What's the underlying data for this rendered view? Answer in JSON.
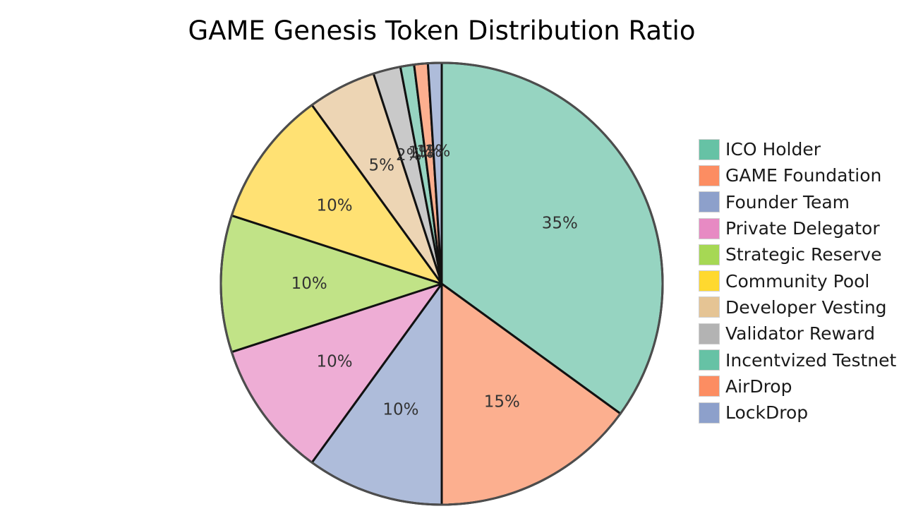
{
  "chart_data": {
    "type": "pie",
    "title": "GAME Genesis Token Distribution Ratio",
    "categories": [
      "ICO Holder",
      "GAME Foundation",
      "Founder Team",
      "Private Delegator",
      "Strategic Reserve",
      "Community Pool",
      "Developer Vesting",
      "Validator Reward",
      "Incentvized Testnet",
      "AirDrop",
      "LockDrop"
    ],
    "values": [
      35,
      15,
      10,
      10,
      10,
      10,
      5,
      2,
      1,
      1,
      1
    ],
    "value_labels": [
      "35%",
      "15%",
      "10%",
      "10%",
      "10%",
      "10%",
      "5%",
      "2%",
      "1%",
      "1%",
      "1%"
    ],
    "slice_colors": [
      "#96d4c1",
      "#fcaf8f",
      "#aebcda",
      "#eeadd5",
      "#c1e387",
      "#ffe173",
      "#edd5b4",
      "#c9c9c9",
      "#96d4c1",
      "#fcaf8f",
      "#aebcda"
    ],
    "legend_colors": [
      "#66c2a5",
      "#fc8d62",
      "#8da0cb",
      "#e78ac3",
      "#a6d854",
      "#ffd92f",
      "#e5c494",
      "#b3b3b3",
      "#66c2a5",
      "#fc8d62",
      "#8da0cb"
    ],
    "legend_position": "right"
  }
}
